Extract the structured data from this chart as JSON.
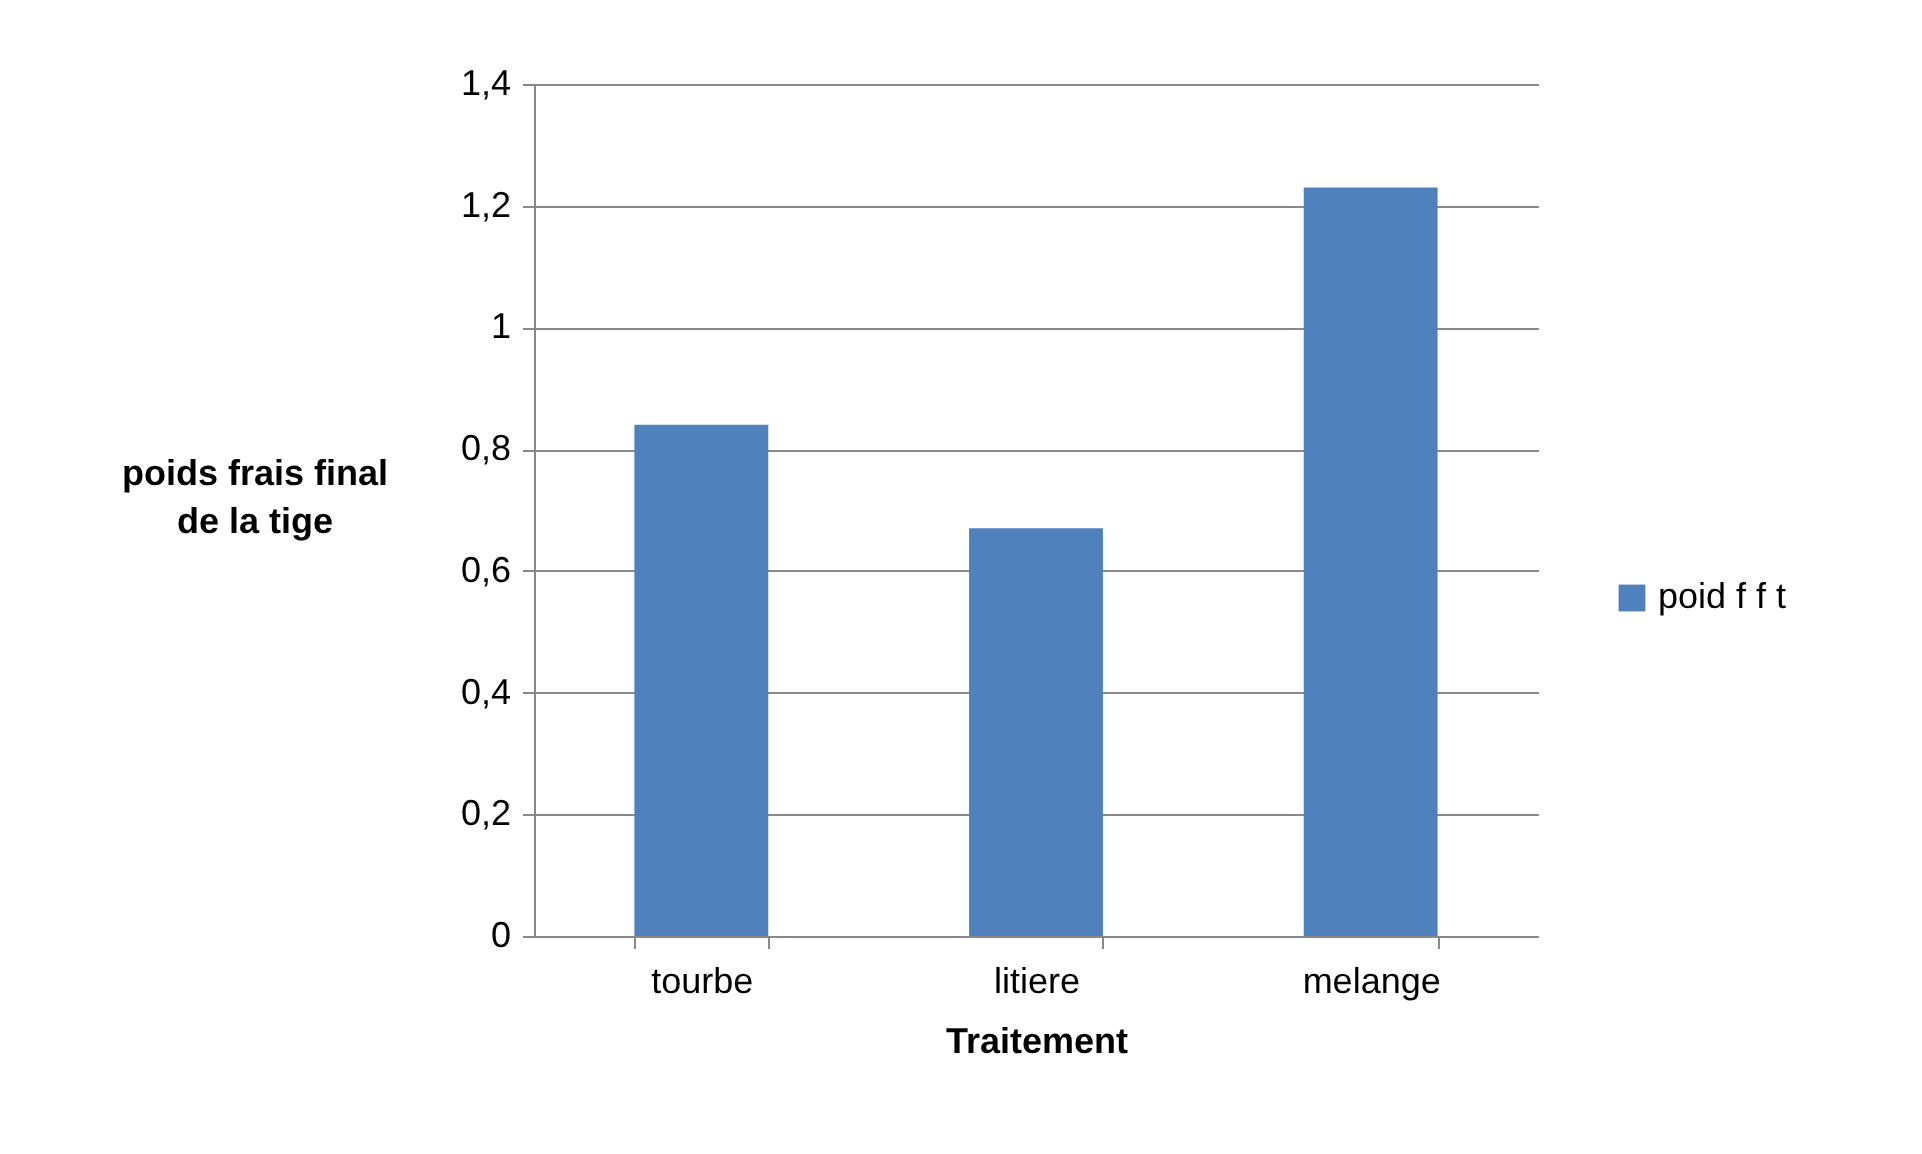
{
  "chart_data": {
    "type": "bar",
    "xlabel": "Traitement",
    "ylabel": "poids frais final de la tige",
    "categories": [
      "tourbe",
      "litiere",
      "melange"
    ],
    "series": [
      {
        "name": "poid f f t",
        "color": "#4f81bd",
        "values": [
          0.84,
          0.67,
          1.23
        ]
      }
    ],
    "ylim": [
      0,
      1.4
    ],
    "yticks": [
      {
        "value": 0,
        "label": "0"
      },
      {
        "value": 0.2,
        "label": "0,2"
      },
      {
        "value": 0.4,
        "label": "0,4"
      },
      {
        "value": 0.6,
        "label": "0,6"
      },
      {
        "value": 0.8,
        "label": "0,8"
      },
      {
        "value": 1,
        "label": "1"
      },
      {
        "value": 1.2,
        "label": "1,2"
      },
      {
        "value": 1.4,
        "label": "1,4"
      }
    ],
    "grid": "y",
    "legend": "right"
  }
}
